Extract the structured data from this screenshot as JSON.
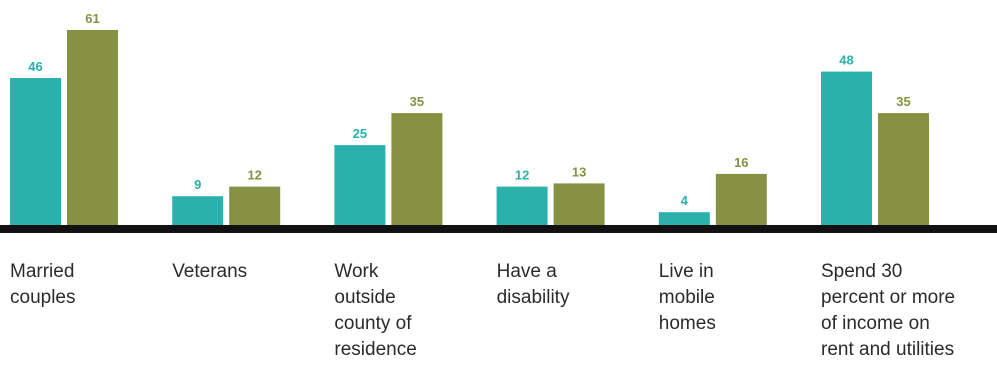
{
  "chart_data": {
    "type": "bar",
    "title": "",
    "xlabel": "",
    "ylabel": "",
    "categories": [
      "Married\ncouples",
      "Veterans",
      "Work\noutside\ncounty of\nresidence",
      "Have a\ndisability",
      "Live in\nmobile\nhomes",
      "Spend 30\npercent or more\nof income on\nrent and utilities"
    ],
    "series": [
      {
        "values": [
          46,
          9,
          25,
          12,
          4,
          48
        ],
        "color": "#2bb0ab"
      },
      {
        "values": [
          61,
          12,
          35,
          13,
          16,
          35
        ],
        "color": "#879144"
      }
    ],
    "ylim": [
      0,
      65
    ],
    "grid": false,
    "legend": "none",
    "data_labels": true
  }
}
